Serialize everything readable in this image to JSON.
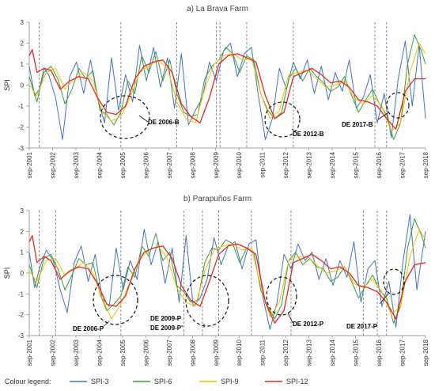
{
  "legend": {
    "title": "Colour legend:",
    "items": [
      {
        "name": "SPI-3",
        "color": "#4472C4"
      },
      {
        "name": "SPI-6",
        "color": "#3A9E3A"
      },
      {
        "name": "SPI-9",
        "color": "#F2C200"
      },
      {
        "name": "SPI-12",
        "color": "#E8281E"
      }
    ]
  },
  "chart_data": [
    {
      "type": "line",
      "title": "a) La Brava Farm",
      "ylabel": "SPI",
      "ylim": [
        -3,
        3
      ],
      "yticks": [
        3,
        2,
        1,
        0,
        -1,
        -2,
        -3
      ],
      "xlim": [
        2001.67,
        2018.67
      ],
      "xticks": [
        "sep-2001",
        "sep-2002",
        "sep-2003",
        "sep-2004",
        "sep-2005",
        "sep-2006",
        "sep-2007",
        "sep-2008",
        "sep-2009",
        "sep-2010",
        "sep-2011",
        "sep-2012",
        "sep-2013",
        "sep-2014",
        "sep-2015",
        "sep-2016",
        "sep-2017",
        "sep-2018"
      ],
      "grid": false,
      "event_lines": [
        2002.1,
        2005.6,
        2008.0,
        2009.7,
        2009.85,
        2011.0,
        2013.0,
        2016.5,
        2017.0
      ],
      "annotations": [
        {
          "label": "DE 2006-B",
          "x": 2005.2,
          "y": -0.9
        },
        {
          "label": "DE 2012-B",
          "x": 2012.0,
          "y": -1.3
        },
        {
          "label": "DE 2017-B",
          "x": 2016.8,
          "y": -0.9
        }
      ],
      "series": [
        {
          "name": "SPI-3",
          "x": [
            2001.67,
            2001.9,
            2002.1,
            2002.3,
            2002.5,
            2002.8,
            2003.1,
            2003.4,
            2003.7,
            2004.0,
            2004.3,
            2004.6,
            2004.9,
            2005.2,
            2005.5,
            2005.8,
            2006.1,
            2006.4,
            2006.7,
            2007.0,
            2007.3,
            2007.6,
            2007.9,
            2008.2,
            2008.5,
            2008.8,
            2009.1,
            2009.4,
            2009.7,
            2010.0,
            2010.3,
            2010.6,
            2010.9,
            2011.2,
            2011.5,
            2011.8,
            2012.1,
            2012.4,
            2012.7,
            2013.0,
            2013.3,
            2013.6,
            2013.9,
            2014.2,
            2014.5,
            2014.8,
            2015.1,
            2015.4,
            2015.7,
            2016.0,
            2016.3,
            2016.6,
            2016.9,
            2017.2,
            2017.5,
            2017.8,
            2018.1,
            2018.4,
            2018.67
          ],
          "values": [
            0.9,
            -0.5,
            -0.2,
            0.8,
            0.5,
            -0.6,
            -2.6,
            0.4,
            1.1,
            -0.4,
            1.2,
            -0.6,
            -1.8,
            1.3,
            -1.2,
            0.5,
            -0.8,
            1.9,
            0.2,
            1.8,
            -0.1,
            1.3,
            -1.1,
            1.5,
            -1.9,
            -1.2,
            -0.6,
            1.1,
            0.2,
            1.6,
            2.0,
            0.4,
            1.5,
            1.8,
            -0.5,
            -2.6,
            -1.6,
            0.8,
            -0.2,
            1.1,
            0.3,
            1.2,
            -0.4,
            0.9,
            -0.7,
            0.6,
            -0.3,
            1.2,
            -1.1,
            -0.6,
            0.5,
            -1.8,
            -0.4,
            -2.5,
            0.3,
            2.1,
            -1.0,
            1.9,
            -1.6
          ]
        },
        {
          "name": "SPI-6",
          "x": [
            2001.67,
            2002.0,
            2002.3,
            2002.6,
            2002.9,
            2003.2,
            2003.5,
            2003.8,
            2004.1,
            2004.4,
            2004.7,
            2005.0,
            2005.3,
            2005.6,
            2005.9,
            2006.2,
            2006.5,
            2006.8,
            2007.1,
            2007.4,
            2007.7,
            2008.0,
            2008.3,
            2008.6,
            2008.9,
            2009.2,
            2009.5,
            2009.8,
            2010.1,
            2010.4,
            2010.7,
            2011.0,
            2011.3,
            2011.6,
            2011.9,
            2012.2,
            2012.5,
            2012.8,
            2013.1,
            2013.4,
            2013.7,
            2014.0,
            2014.3,
            2014.6,
            2014.9,
            2015.2,
            2015.5,
            2015.8,
            2016.1,
            2016.4,
            2016.7,
            2017.0,
            2017.3,
            2017.6,
            2017.9,
            2018.2,
            2018.5,
            2018.67
          ],
          "values": [
            0.4,
            -0.8,
            0.6,
            0.9,
            0.3,
            -0.9,
            -0.2,
            0.8,
            0.3,
            0.7,
            -1.2,
            -1.4,
            -1.9,
            -1.3,
            0.2,
            -0.4,
            1.4,
            0.6,
            1.6,
            0.2,
            1.2,
            -0.4,
            -1.3,
            -1.5,
            -1.4,
            0.3,
            0.9,
            1.2,
            1.8,
            1.5,
            0.6,
            1.4,
            1.2,
            -0.4,
            -1.2,
            -1.6,
            -1.3,
            0.3,
            0.8,
            0.2,
            0.8,
            0.4,
            0.1,
            -0.3,
            -0.1,
            0.4,
            -0.5,
            -1.3,
            -0.7,
            -0.2,
            -0.9,
            -1.4,
            -2.6,
            -1.8,
            1.0,
            2.4,
            1.6,
            1.0
          ]
        },
        {
          "name": "SPI-9",
          "x": [
            2001.67,
            2002.0,
            2002.4,
            2002.8,
            2003.2,
            2003.6,
            2004.0,
            2004.4,
            2004.8,
            2005.2,
            2005.6,
            2006.0,
            2006.4,
            2006.8,
            2007.2,
            2007.6,
            2008.0,
            2008.4,
            2008.8,
            2009.2,
            2009.6,
            2010.0,
            2010.4,
            2010.8,
            2011.2,
            2011.6,
            2012.0,
            2012.4,
            2012.8,
            2013.2,
            2013.6,
            2014.0,
            2014.4,
            2014.8,
            2015.2,
            2015.6,
            2016.0,
            2016.4,
            2016.8,
            2017.2,
            2017.6,
            2018.0,
            2018.4,
            2018.67
          ],
          "values": [
            0.0,
            -0.5,
            0.6,
            0.8,
            -0.2,
            0.3,
            0.6,
            0.2,
            -1.3,
            -1.7,
            -1.5,
            -0.6,
            0.6,
            0.9,
            1.2,
            0.8,
            -0.8,
            -1.6,
            -1.8,
            -0.2,
            1.0,
            1.4,
            1.5,
            1.2,
            1.3,
            -0.4,
            -1.6,
            -1.2,
            0.5,
            0.6,
            0.7,
            0.3,
            -0.1,
            0.0,
            0.2,
            -0.6,
            -0.9,
            -0.5,
            -1.0,
            -2.2,
            -1.8,
            0.6,
            2.0,
            1.5
          ]
        },
        {
          "name": "SPI-12",
          "x": [
            2001.67,
            2001.8,
            2002.0,
            2002.3,
            2002.6,
            2003.0,
            2003.4,
            2003.8,
            2004.2,
            2004.6,
            2005.0,
            2005.4,
            2005.8,
            2006.2,
            2006.6,
            2007.0,
            2007.4,
            2007.8,
            2008.2,
            2008.6,
            2009.0,
            2009.4,
            2009.8,
            2010.2,
            2010.6,
            2011.0,
            2011.4,
            2011.8,
            2012.2,
            2012.6,
            2013.0,
            2013.4,
            2013.8,
            2014.2,
            2014.6,
            2015.0,
            2015.4,
            2015.8,
            2016.2,
            2016.6,
            2017.0,
            2017.4,
            2017.8,
            2018.2,
            2018.67
          ],
          "values": [
            1.4,
            1.7,
            0.6,
            0.8,
            0.7,
            -0.2,
            0.2,
            0.4,
            0.3,
            -0.6,
            -1.3,
            -1.4,
            -1.0,
            0.3,
            0.9,
            1.1,
            1.2,
            0.6,
            -0.9,
            -1.5,
            -1.8,
            -0.6,
            1.0,
            1.4,
            1.5,
            1.3,
            1.1,
            -0.5,
            -1.6,
            -1.3,
            0.4,
            0.6,
            0.8,
            0.5,
            0.1,
            0.2,
            -0.1,
            -0.7,
            -0.8,
            -1.0,
            -1.6,
            -2.1,
            -0.3,
            0.3,
            0.3
          ]
        }
      ]
    },
    {
      "type": "line",
      "title": "b) Parapuños Farm",
      "ylabel": "SPI",
      "ylim": [
        -3,
        3
      ],
      "yticks": [
        3,
        2,
        1,
        0,
        -1,
        -2,
        -3
      ],
      "xlim": [
        2001.67,
        2018.67
      ],
      "xticks": [
        "sep-2001",
        "sep-2002",
        "sep-2003",
        "sep-2004",
        "sep-2005",
        "sep-2006",
        "sep-2007",
        "sep-2008",
        "sep-2009",
        "sep-2010",
        "sep-2011",
        "sep-2012",
        "sep-2013",
        "sep-2014",
        "sep-2015",
        "sep-2016",
        "sep-2017",
        "sep-2018"
      ],
      "grid": false,
      "event_lines": [
        2002.1,
        2002.8,
        2005.6,
        2008.3,
        2009.1,
        2009.8,
        2011.2,
        2012.9,
        2016.0,
        2016.6,
        2017.0
      ],
      "annotations": [
        {
          "label": "DE 2006-P",
          "x": 2005.1,
          "y": -1.2
        },
        {
          "label": "DE 2009-P",
          "x": 2008.9,
          "y": -1.0
        },
        {
          "label": "DE 2009-P'",
          "x": 2008.9,
          "y": -1.0
        },
        {
          "label": "DE 2012-P",
          "x": 2011.9,
          "y": -1.9
        },
        {
          "label": "DE 2017-P",
          "x": 2016.6,
          "y": -1.3
        }
      ],
      "series": [
        {
          "name": "SPI-3",
          "x": [
            2001.67,
            2001.9,
            2002.1,
            2002.4,
            2002.7,
            2003.0,
            2003.3,
            2003.6,
            2003.9,
            2004.2,
            2004.5,
            2004.8,
            2005.1,
            2005.4,
            2005.7,
            2006.0,
            2006.3,
            2006.6,
            2006.9,
            2007.2,
            2007.5,
            2007.8,
            2008.1,
            2008.4,
            2008.7,
            2009.0,
            2009.3,
            2009.6,
            2009.9,
            2010.2,
            2010.5,
            2010.8,
            2011.1,
            2011.4,
            2011.7,
            2012.0,
            2012.3,
            2012.6,
            2012.9,
            2013.2,
            2013.5,
            2013.8,
            2014.1,
            2014.4,
            2014.7,
            2015.0,
            2015.3,
            2015.6,
            2015.9,
            2016.2,
            2016.5,
            2016.8,
            2017.1,
            2017.4,
            2017.7,
            2018.0,
            2018.3,
            2018.67
          ],
          "values": [
            1.0,
            -0.7,
            0.2,
            1.1,
            0.6,
            -0.8,
            -1.9,
            0.5,
            1.3,
            -0.4,
            0.9,
            -1.2,
            -1.6,
            1.2,
            -0.8,
            0.6,
            -0.3,
            2.1,
            0.4,
            1.5,
            -0.5,
            1.2,
            -1.4,
            1.8,
            -1.6,
            -1.2,
            -0.3,
            1.7,
            0.4,
            1.3,
            1.5,
            0.2,
            1.4,
            1.6,
            -1.2,
            -2.7,
            -1.4,
            0.9,
            0.2,
            1.4,
            0.6,
            1.0,
            -0.3,
            0.7,
            -0.6,
            0.6,
            -0.2,
            1.5,
            -1.4,
            0.2,
            0.6,
            -1.6,
            -0.4,
            -2.6,
            0.5,
            2.8,
            -0.8,
            2.0
          ]
        },
        {
          "name": "SPI-6",
          "x": [
            2001.67,
            2002.0,
            2002.3,
            2002.6,
            2002.9,
            2003.2,
            2003.5,
            2003.8,
            2004.1,
            2004.4,
            2004.7,
            2005.0,
            2005.3,
            2005.6,
            2005.9,
            2006.2,
            2006.5,
            2006.8,
            2007.1,
            2007.4,
            2007.7,
            2008.0,
            2008.3,
            2008.6,
            2008.9,
            2009.2,
            2009.5,
            2009.8,
            2010.1,
            2010.4,
            2010.7,
            2011.0,
            2011.3,
            2011.6,
            2011.9,
            2012.2,
            2012.5,
            2012.8,
            2013.1,
            2013.4,
            2013.7,
            2014.0,
            2014.3,
            2014.6,
            2014.9,
            2015.2,
            2015.5,
            2015.8,
            2016.1,
            2016.4,
            2016.7,
            2017.0,
            2017.3,
            2017.6,
            2017.9,
            2018.2,
            2018.5,
            2018.67
          ],
          "values": [
            0.4,
            -0.7,
            0.7,
            0.9,
            0.2,
            -0.8,
            -0.1,
            0.7,
            0.4,
            0.5,
            -1.0,
            -1.8,
            -1.5,
            -1.1,
            0.3,
            -0.2,
            1.3,
            0.8,
            1.9,
            0.6,
            1.0,
            -0.6,
            -0.9,
            -1.4,
            -1.3,
            0.5,
            1.2,
            1.1,
            1.6,
            1.4,
            0.5,
            1.2,
            1.0,
            -0.8,
            -1.6,
            -2.2,
            -1.5,
            0.6,
            1.0,
            0.4,
            0.7,
            0.3,
            0.2,
            -0.4,
            -0.2,
            0.3,
            -0.4,
            -1.2,
            -0.6,
            -0.1,
            -0.8,
            -1.2,
            -2.4,
            -1.6,
            1.2,
            2.6,
            1.8,
            1.2
          ]
        },
        {
          "name": "SPI-9",
          "x": [
            2001.67,
            2002.0,
            2002.4,
            2002.8,
            2003.2,
            2003.6,
            2004.0,
            2004.4,
            2004.8,
            2005.2,
            2005.6,
            2006.0,
            2006.4,
            2006.8,
            2007.2,
            2007.6,
            2008.0,
            2008.4,
            2008.8,
            2009.2,
            2009.6,
            2010.0,
            2010.4,
            2010.8,
            2011.2,
            2011.6,
            2012.0,
            2012.4,
            2012.8,
            2013.2,
            2013.6,
            2014.0,
            2014.4,
            2014.8,
            2015.2,
            2015.6,
            2016.0,
            2016.4,
            2016.8,
            2017.2,
            2017.6,
            2018.0,
            2018.4,
            2018.67
          ],
          "values": [
            0.1,
            -0.4,
            0.6,
            0.7,
            -0.1,
            0.2,
            0.5,
            0.0,
            -1.2,
            -2.2,
            -1.5,
            -0.4,
            0.7,
            1.1,
            1.3,
            0.7,
            -0.7,
            -1.4,
            -1.6,
            0.1,
            1.1,
            1.3,
            1.4,
            1.1,
            1.2,
            -0.6,
            -2.1,
            -1.4,
            0.6,
            0.8,
            0.8,
            0.4,
            0.0,
            0.1,
            0.3,
            -0.5,
            -0.7,
            -0.3,
            -0.9,
            -2.0,
            -1.6,
            0.8,
            2.1,
            1.6
          ]
        },
        {
          "name": "SPI-12",
          "x": [
            2001.67,
            2001.8,
            2002.0,
            2002.3,
            2002.6,
            2003.0,
            2003.4,
            2003.8,
            2004.2,
            2004.6,
            2005.0,
            2005.4,
            2005.8,
            2006.2,
            2006.6,
            2007.0,
            2007.4,
            2007.8,
            2008.2,
            2008.6,
            2009.0,
            2009.4,
            2009.8,
            2010.2,
            2010.6,
            2011.0,
            2011.4,
            2011.8,
            2012.2,
            2012.6,
            2013.0,
            2013.4,
            2013.8,
            2014.2,
            2014.6,
            2015.0,
            2015.4,
            2015.8,
            2016.2,
            2016.6,
            2017.0,
            2017.4,
            2017.8,
            2018.2,
            2018.67
          ],
          "values": [
            1.5,
            1.8,
            0.5,
            0.8,
            0.6,
            -0.3,
            0.1,
            0.3,
            0.2,
            -0.5,
            -1.5,
            -1.6,
            -1.1,
            0.2,
            1.0,
            1.2,
            1.3,
            0.7,
            -0.6,
            -1.3,
            -1.6,
            -0.4,
            0.9,
            1.3,
            1.4,
            1.2,
            0.9,
            -1.4,
            -2.4,
            -1.8,
            0.5,
            0.7,
            0.9,
            0.6,
            0.2,
            0.3,
            0.0,
            -0.6,
            -0.7,
            -0.9,
            -1.4,
            -2.2,
            -0.4,
            0.4,
            0.5
          ]
        }
      ]
    }
  ]
}
